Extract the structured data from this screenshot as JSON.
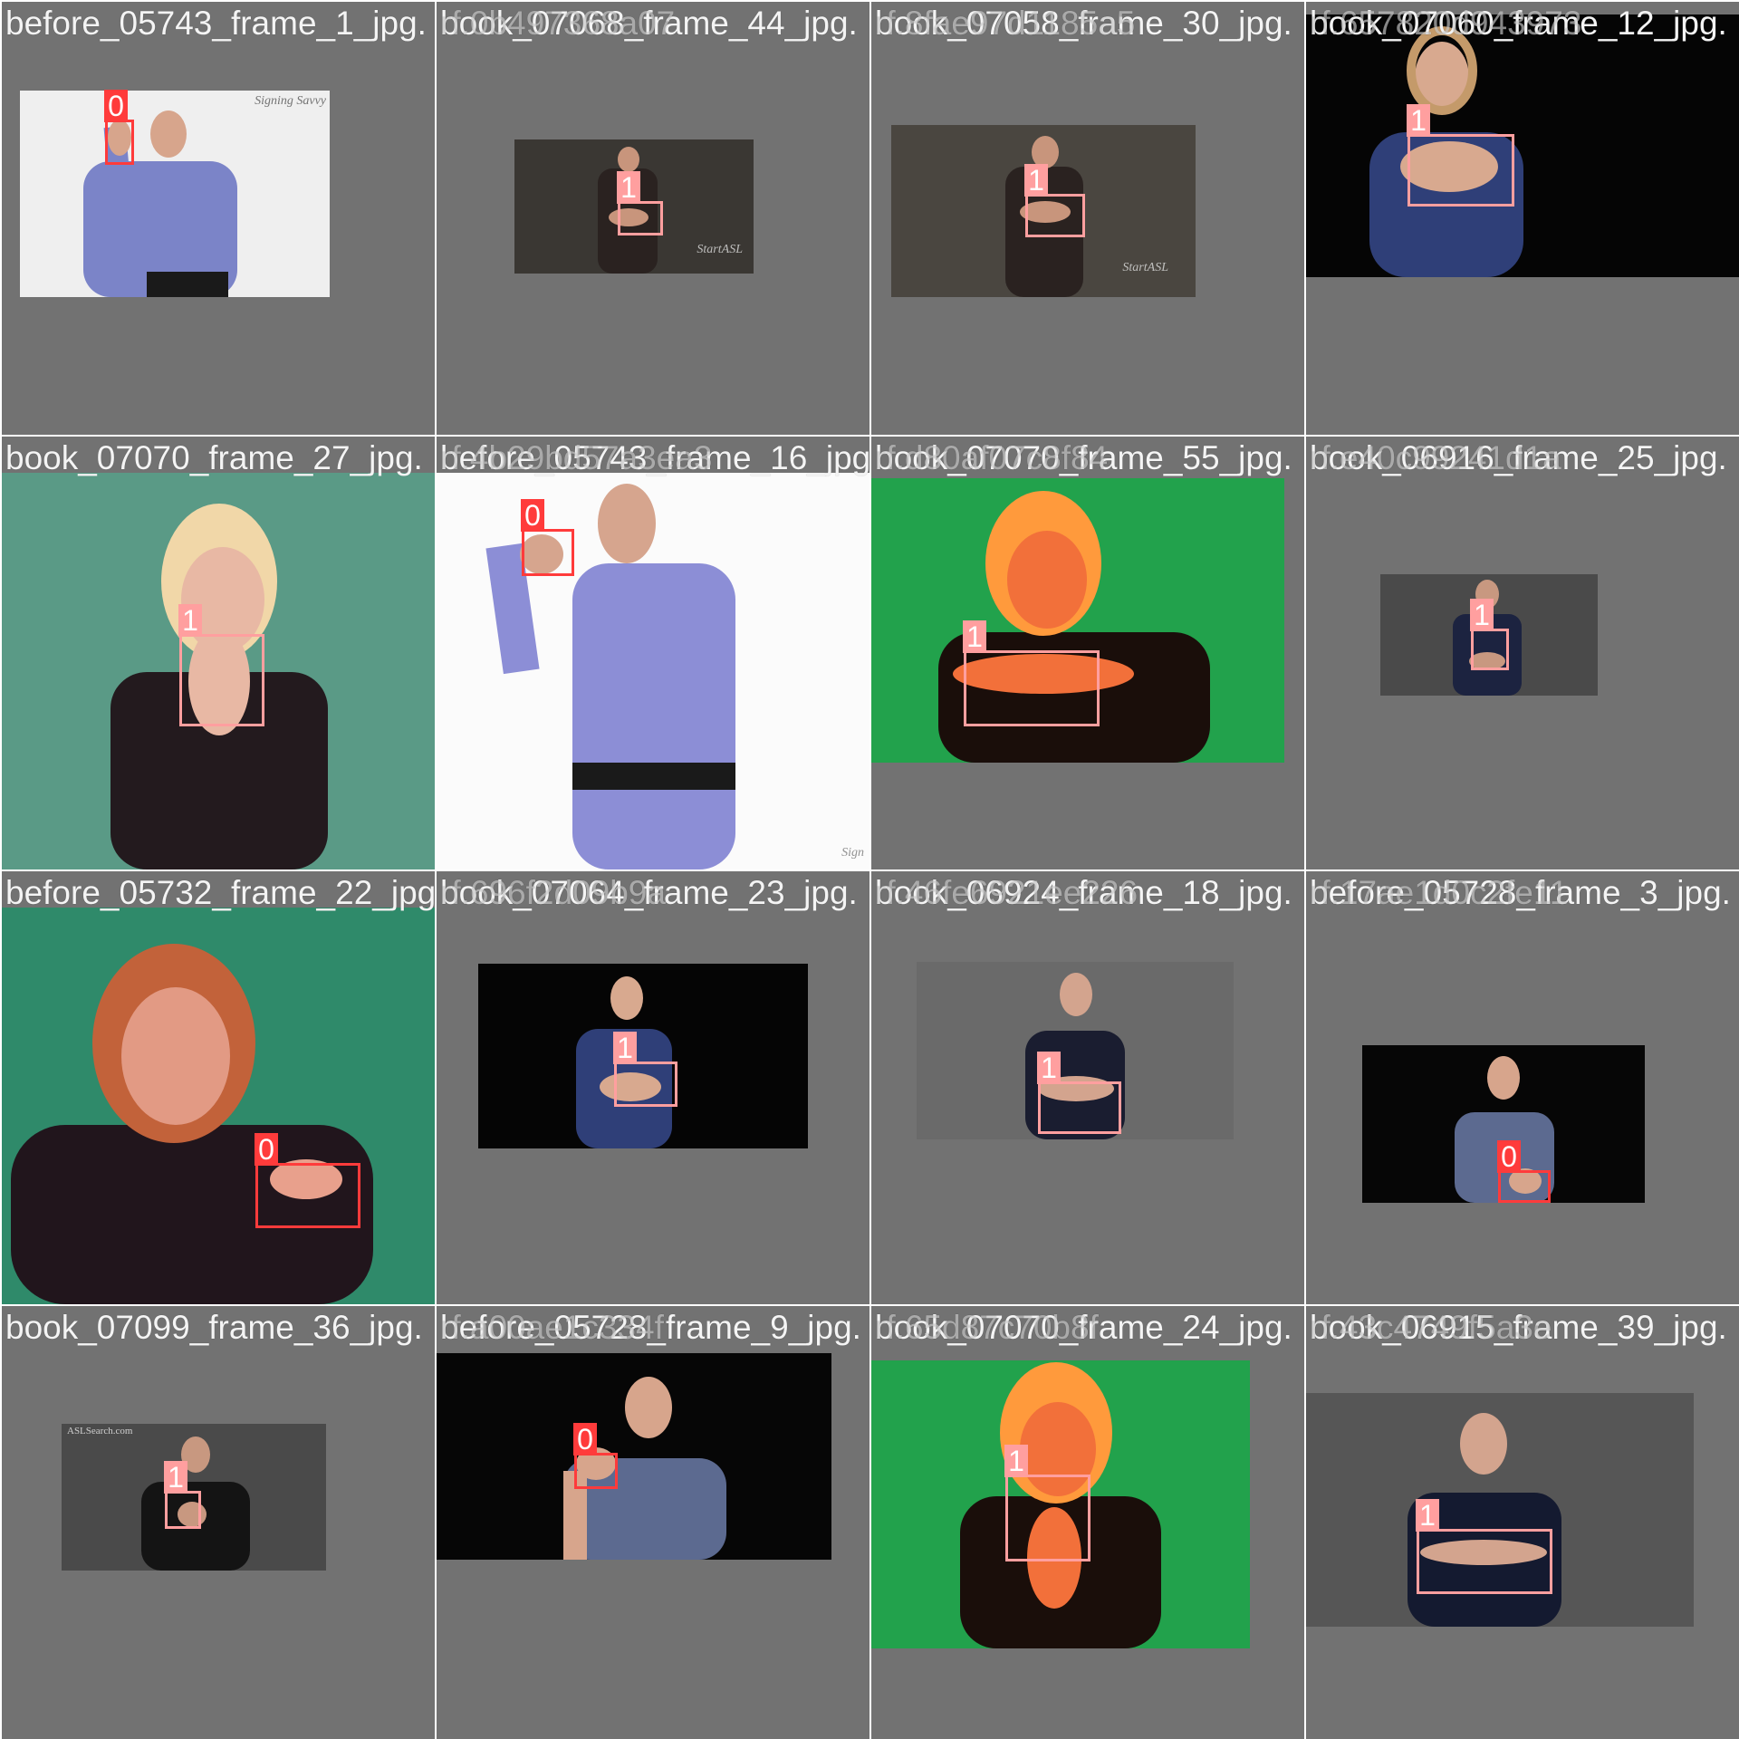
{
  "colors": {
    "class0_box": "#ff3b3b",
    "class1_box": "#ff9f9f",
    "tile_background": "#727272"
  },
  "tiles": [
    {
      "label": "before_05743_frame_1_jpg.",
      "overlay": "",
      "boxes": [
        {
          "cls": "0"
        }
      ],
      "watermark": "Signing Savvy"
    },
    {
      "label": "book_07068_frame_44_jpg.",
      "overlay": "rf.0b497368a07",
      "boxes": [
        {
          "cls": "1"
        }
      ],
      "watermark": "StartASL"
    },
    {
      "label": "book_07058_frame_30_jpg.",
      "overlay": "rf.8fae97d1185a5",
      "boxes": [
        {
          "cls": "1"
        }
      ],
      "watermark": "StartASL"
    },
    {
      "label": "book_07060_frame_12_jpg.",
      "overlay": "rf.657820d943973",
      "boxes": [
        {
          "cls": "1"
        }
      ],
      "watermark": ""
    },
    {
      "label": "book_07070_frame_27_jpg.",
      "overlay": "",
      "boxes": [
        {
          "cls": "1"
        }
      ],
      "watermark": ""
    },
    {
      "label": "before_05743_frame_16_jpg.",
      "overlay": "rf.4b29bd57a3ea3",
      "boxes": [
        {
          "cls": "0"
        }
      ],
      "watermark": "Sign"
    },
    {
      "label": "book_07070_frame_55_jpg.",
      "overlay": "rf.d80af07c8f84",
      "boxes": [
        {
          "cls": "1"
        }
      ],
      "watermark": ""
    },
    {
      "label": "book_06916_frame_25_jpg.",
      "overlay": "rf.e40c99241d1a",
      "boxes": [
        {
          "cls": "1"
        }
      ],
      "watermark": ""
    },
    {
      "label": "before_05732_frame_22_jpg.",
      "overlay": "",
      "boxes": [
        {
          "cls": "0"
        }
      ],
      "watermark": ""
    },
    {
      "label": "book_07064_frame_23_jpg.",
      "overlay": "rf.696f2d09b9a",
      "boxes": [
        {
          "cls": "1"
        }
      ],
      "watermark": ""
    },
    {
      "label": "book_06924_frame_18_jpg.",
      "overlay": "rf.46fe6921ee226",
      "boxes": [
        {
          "cls": "1"
        }
      ],
      "watermark": ""
    },
    {
      "label": "before_05728_frame_3_jpg.",
      "overlay": "rf.17ae1d0c2fe11",
      "boxes": [
        {
          "cls": "0"
        }
      ],
      "watermark": ""
    },
    {
      "label": "book_07099_frame_36_jpg.",
      "overlay": "",
      "boxes": [
        {
          "cls": "1"
        }
      ],
      "watermark": "ASLSearch.com"
    },
    {
      "label": "before_05728_frame_9_jpg.",
      "overlay": "rf.a00ae1c334f",
      "boxes": [
        {
          "cls": "0"
        }
      ],
      "watermark": ""
    },
    {
      "label": "book_07070_frame_24_jpg.",
      "overlay": "rf.65d87c70b8f",
      "boxes": [
        {
          "cls": "1"
        }
      ],
      "watermark": ""
    },
    {
      "label": "book_06915_frame_39_jpg.",
      "overlay": "rf.43c4749f5a3e",
      "boxes": [
        {
          "cls": "1"
        }
      ],
      "watermark": ""
    }
  ]
}
